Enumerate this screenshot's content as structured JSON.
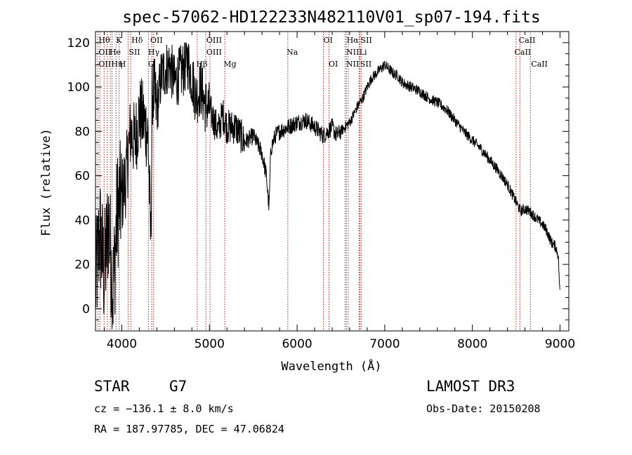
{
  "chart_data": {
    "type": "line",
    "title": "spec-57062-HD122233N482110V01_sp07-194.fits",
    "xlabel": "Wavelength (Å)",
    "ylabel": "Flux (relative)",
    "xlim": [
      3700,
      9100
    ],
    "ylim": [
      -10,
      125
    ],
    "xticks": [
      4000,
      5000,
      6000,
      7000,
      8000,
      9000
    ],
    "yticks": [
      0,
      20,
      40,
      60,
      80,
      100,
      120
    ],
    "series": [
      {
        "name": "flux",
        "x": [
          3700,
          3750,
          3800,
          3850,
          3900,
          3950,
          4000,
          4050,
          4100,
          4150,
          4200,
          4250,
          4300,
          4330,
          4350,
          4400,
          4450,
          4500,
          4550,
          4600,
          4650,
          4700,
          4750,
          4800,
          4850,
          4900,
          4950,
          5000,
          5050,
          5100,
          5150,
          5200,
          5300,
          5400,
          5500,
          5600,
          5650,
          5680,
          5700,
          5750,
          5800,
          5900,
          6000,
          6100,
          6200,
          6300,
          6350,
          6400,
          6450,
          6500,
          6550,
          6600,
          6650,
          6700,
          6750,
          6800,
          6850,
          6900,
          6950,
          7000,
          7050,
          7100,
          7150,
          7200,
          7300,
          7400,
          7500,
          7600,
          7700,
          7800,
          7900,
          8000,
          8100,
          8200,
          8300,
          8400,
          8450,
          8500,
          8550,
          8600,
          8650,
          8700,
          8750,
          8800,
          8850,
          8900,
          8950,
          8980,
          9000
        ],
        "y": [
          10,
          35,
          15,
          40,
          8,
          45,
          50,
          60,
          80,
          75,
          88,
          85,
          78,
          30,
          100,
          90,
          105,
          108,
          110,
          102,
          105,
          108,
          112,
          104,
          95,
          100,
          92,
          90,
          85,
          80,
          88,
          82,
          82,
          75,
          78,
          70,
          60,
          45,
          72,
          78,
          80,
          82,
          84,
          85,
          82,
          78,
          80,
          82,
          78,
          80,
          82,
          84,
          88,
          92,
          95,
          100,
          104,
          106,
          108,
          110,
          108,
          106,
          105,
          102,
          100,
          98,
          95,
          93,
          90,
          85,
          80,
          76,
          72,
          67,
          62,
          56,
          52,
          48,
          44,
          45,
          44,
          42,
          40,
          38,
          35,
          30,
          28,
          24,
          5
        ]
      }
    ],
    "line_markers": [
      {
        "wave": 3727,
        "labels": [
          "Hθ",
          "OII",
          "OII"
        ]
      },
      {
        "wave": 3750,
        "labels": []
      },
      {
        "wave": 3798,
        "labels": []
      },
      {
        "wave": 3835,
        "labels": []
      },
      {
        "wave": 3869,
        "labels": [
          "He",
          "Hη"
        ]
      },
      {
        "wave": 3889,
        "labels": []
      },
      {
        "wave": 3934,
        "labels": [
          "K"
        ]
      },
      {
        "wave": 3970,
        "labels": [
          "H"
        ]
      },
      {
        "wave": 4072,
        "labels": [
          "SII"
        ]
      },
      {
        "wave": 4102,
        "labels": [
          "Hδ"
        ]
      },
      {
        "wave": 4304,
        "labels": [
          "G"
        ]
      },
      {
        "wave": 4341,
        "labels": [
          "Hγ"
        ]
      },
      {
        "wave": 4363,
        "labels": [
          "OIII"
        ]
      },
      {
        "wave": 4861,
        "labels": [
          "Hβ"
        ]
      },
      {
        "wave": 4959,
        "labels": [
          "OIII"
        ]
      },
      {
        "wave": 5007,
        "labels": [
          "OIII"
        ]
      },
      {
        "wave": 5175,
        "labels": [
          "Mg"
        ]
      },
      {
        "wave": 5894,
        "labels": [
          "Na"
        ]
      },
      {
        "wave": 6300,
        "labels": [
          "OI"
        ]
      },
      {
        "wave": 6364,
        "labels": [
          "OI"
        ]
      },
      {
        "wave": 6548,
        "labels": [
          "NII"
        ]
      },
      {
        "wave": 6563,
        "labels": [
          "Hα"
        ]
      },
      {
        "wave": 6583,
        "labels": [
          "NII"
        ]
      },
      {
        "wave": 6707,
        "labels": [
          "Li"
        ]
      },
      {
        "wave": 6716,
        "labels": [
          "SII"
        ]
      },
      {
        "wave": 6731,
        "labels": [
          "SII"
        ]
      },
      {
        "wave": 8498,
        "labels": [
          "CaII"
        ]
      },
      {
        "wave": 8542,
        "labels": [
          "CaII"
        ]
      },
      {
        "wave": 8662,
        "labels": [
          "CaII"
        ]
      }
    ],
    "line_label_rows": [
      [
        "Hθ",
        "K",
        "Hδ",
        "OII",
        "OIII",
        "OI",
        "Hα",
        "SII",
        "CaII"
      ],
      [
        "OII",
        "He",
        "SII",
        "Hγ",
        "OIII",
        "Na",
        "NII",
        "Li",
        "CaII"
      ],
      [
        "OII",
        "Hη",
        "H",
        "G",
        "Hβ",
        "Mg",
        "OI",
        "NII",
        "SII",
        "CaII"
      ]
    ]
  },
  "info": {
    "object_type": "STAR",
    "subclass": "G7",
    "survey": "LAMOST DR3",
    "redshift": "cz = −136.1 ± 8.0 km/s",
    "obs_date": "Obs-Date: 20150208",
    "coords": "RA = 187.97785, DEC =  47.06824"
  }
}
